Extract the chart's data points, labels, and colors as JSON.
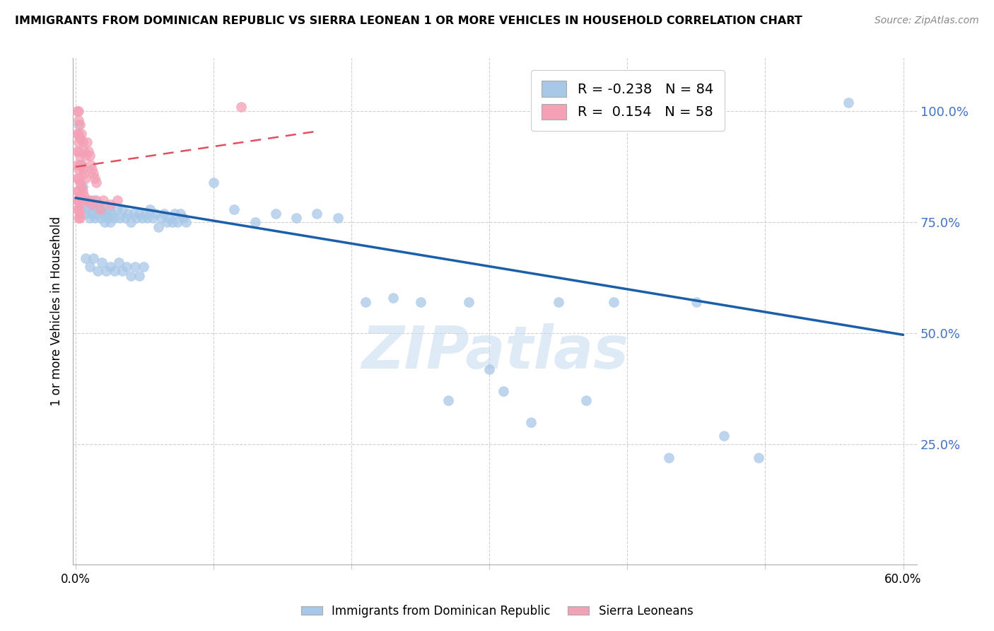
{
  "title": "IMMIGRANTS FROM DOMINICAN REPUBLIC VS SIERRA LEONEAN 1 OR MORE VEHICLES IN HOUSEHOLD CORRELATION CHART",
  "source": "Source: ZipAtlas.com",
  "ylabel": "1 or more Vehicles in Household",
  "ytick_labels": [
    "100.0%",
    "75.0%",
    "50.0%",
    "25.0%"
  ],
  "ytick_values": [
    1.0,
    0.75,
    0.5,
    0.25
  ],
  "ylim": [
    -0.02,
    1.12
  ],
  "xlim": [
    -0.002,
    0.61
  ],
  "xtick_positions": [
    0.0,
    0.1,
    0.2,
    0.3,
    0.4,
    0.5,
    0.6
  ],
  "xtick_labels": [
    "0.0%",
    "",
    "",
    "",
    "",
    "",
    "60.0%"
  ],
  "legend_blue_R": "-0.238",
  "legend_blue_N": "84",
  "legend_pink_R": "0.154",
  "legend_pink_N": "58",
  "blue_color": "#a8c8e8",
  "pink_color": "#f4a0b5",
  "blue_line_color": "#1a5fa8",
  "pink_line_color": "#e05060",
  "blue_scatter": [
    [
      0.002,
      0.97
    ],
    [
      0.004,
      0.88
    ],
    [
      0.005,
      0.83
    ],
    [
      0.006,
      0.79
    ],
    [
      0.007,
      0.77
    ],
    [
      0.008,
      0.8
    ],
    [
      0.009,
      0.78
    ],
    [
      0.01,
      0.76
    ],
    [
      0.011,
      0.79
    ],
    [
      0.012,
      0.77
    ],
    [
      0.013,
      0.8
    ],
    [
      0.014,
      0.76
    ],
    [
      0.015,
      0.78
    ],
    [
      0.016,
      0.77
    ],
    [
      0.017,
      0.79
    ],
    [
      0.018,
      0.76
    ],
    [
      0.019,
      0.78
    ],
    [
      0.02,
      0.77
    ],
    [
      0.021,
      0.75
    ],
    [
      0.022,
      0.77
    ],
    [
      0.023,
      0.76
    ],
    [
      0.024,
      0.78
    ],
    [
      0.025,
      0.75
    ],
    [
      0.026,
      0.77
    ],
    [
      0.028,
      0.76
    ],
    [
      0.03,
      0.78
    ],
    [
      0.032,
      0.76
    ],
    [
      0.034,
      0.78
    ],
    [
      0.036,
      0.76
    ],
    [
      0.038,
      0.77
    ],
    [
      0.04,
      0.75
    ],
    [
      0.042,
      0.77
    ],
    [
      0.044,
      0.76
    ],
    [
      0.046,
      0.77
    ],
    [
      0.048,
      0.76
    ],
    [
      0.05,
      0.77
    ],
    [
      0.052,
      0.76
    ],
    [
      0.054,
      0.78
    ],
    [
      0.056,
      0.76
    ],
    [
      0.058,
      0.77
    ],
    [
      0.06,
      0.74
    ],
    [
      0.062,
      0.76
    ],
    [
      0.064,
      0.77
    ],
    [
      0.066,
      0.75
    ],
    [
      0.068,
      0.76
    ],
    [
      0.07,
      0.75
    ],
    [
      0.072,
      0.77
    ],
    [
      0.074,
      0.75
    ],
    [
      0.076,
      0.77
    ],
    [
      0.078,
      0.76
    ],
    [
      0.08,
      0.75
    ],
    [
      0.007,
      0.67
    ],
    [
      0.01,
      0.65
    ],
    [
      0.013,
      0.67
    ],
    [
      0.016,
      0.64
    ],
    [
      0.019,
      0.66
    ],
    [
      0.022,
      0.64
    ],
    [
      0.025,
      0.65
    ],
    [
      0.028,
      0.64
    ],
    [
      0.031,
      0.66
    ],
    [
      0.034,
      0.64
    ],
    [
      0.037,
      0.65
    ],
    [
      0.04,
      0.63
    ],
    [
      0.043,
      0.65
    ],
    [
      0.046,
      0.63
    ],
    [
      0.049,
      0.65
    ],
    [
      0.1,
      0.84
    ],
    [
      0.115,
      0.78
    ],
    [
      0.13,
      0.75
    ],
    [
      0.145,
      0.77
    ],
    [
      0.16,
      0.76
    ],
    [
      0.175,
      0.77
    ],
    [
      0.19,
      0.76
    ],
    [
      0.21,
      0.57
    ],
    [
      0.23,
      0.58
    ],
    [
      0.25,
      0.57
    ],
    [
      0.27,
      0.35
    ],
    [
      0.285,
      0.57
    ],
    [
      0.3,
      0.42
    ],
    [
      0.31,
      0.37
    ],
    [
      0.33,
      0.3
    ],
    [
      0.35,
      0.57
    ],
    [
      0.37,
      0.35
    ],
    [
      0.39,
      0.57
    ],
    [
      0.43,
      0.22
    ],
    [
      0.45,
      0.57
    ],
    [
      0.47,
      0.27
    ],
    [
      0.495,
      0.22
    ],
    [
      0.56,
      1.02
    ]
  ],
  "pink_scatter": [
    [
      0.001,
      1.0
    ],
    [
      0.002,
      1.0
    ],
    [
      0.002,
      0.98
    ],
    [
      0.003,
      0.97
    ],
    [
      0.001,
      0.95
    ],
    [
      0.002,
      0.95
    ],
    [
      0.002,
      0.93
    ],
    [
      0.003,
      0.94
    ],
    [
      0.001,
      0.91
    ],
    [
      0.002,
      0.91
    ],
    [
      0.003,
      0.9
    ],
    [
      0.001,
      0.88
    ],
    [
      0.002,
      0.87
    ],
    [
      0.003,
      0.88
    ],
    [
      0.001,
      0.85
    ],
    [
      0.002,
      0.85
    ],
    [
      0.003,
      0.84
    ],
    [
      0.001,
      0.82
    ],
    [
      0.002,
      0.82
    ],
    [
      0.003,
      0.81
    ],
    [
      0.001,
      0.8
    ],
    [
      0.002,
      0.8
    ],
    [
      0.003,
      0.79
    ],
    [
      0.001,
      0.78
    ],
    [
      0.002,
      0.78
    ],
    [
      0.003,
      0.77
    ],
    [
      0.002,
      0.76
    ],
    [
      0.003,
      0.76
    ],
    [
      0.004,
      0.95
    ],
    [
      0.005,
      0.93
    ],
    [
      0.006,
      0.91
    ],
    [
      0.007,
      0.9
    ],
    [
      0.004,
      0.88
    ],
    [
      0.005,
      0.87
    ],
    [
      0.006,
      0.86
    ],
    [
      0.007,
      0.85
    ],
    [
      0.004,
      0.83
    ],
    [
      0.005,
      0.82
    ],
    [
      0.006,
      0.81
    ],
    [
      0.007,
      0.8
    ],
    [
      0.008,
      0.93
    ],
    [
      0.009,
      0.91
    ],
    [
      0.01,
      0.9
    ],
    [
      0.011,
      0.88
    ],
    [
      0.012,
      0.87
    ],
    [
      0.013,
      0.86
    ],
    [
      0.014,
      0.85
    ],
    [
      0.015,
      0.84
    ],
    [
      0.01,
      0.8
    ],
    [
      0.012,
      0.79
    ],
    [
      0.015,
      0.8
    ],
    [
      0.018,
      0.78
    ],
    [
      0.02,
      0.8
    ],
    [
      0.025,
      0.79
    ],
    [
      0.03,
      0.8
    ],
    [
      0.12,
      1.01
    ]
  ],
  "blue_line_x": [
    0.0,
    0.6
  ],
  "blue_line_y": [
    0.805,
    0.497
  ],
  "pink_line_x": [
    0.0,
    0.175
  ],
  "pink_line_y": [
    0.875,
    0.955
  ],
  "watermark_text": "ZIPatlas",
  "watermark_color": "#c8ddf0",
  "background_color": "#ffffff",
  "grid_color": "#d0d0d0",
  "tick_color": "#4472c4"
}
